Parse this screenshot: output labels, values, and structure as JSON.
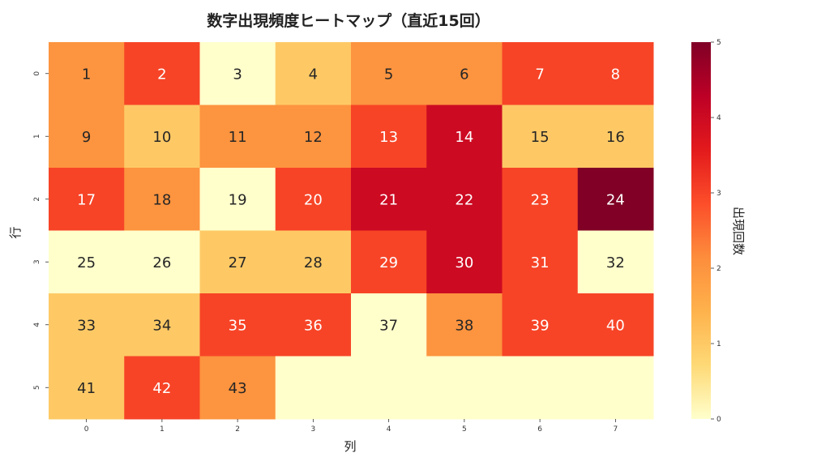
{
  "chart_data": {
    "type": "heatmap",
    "title": "数字出現頻度ヒートマップ（直近15回）",
    "xlabel": "列",
    "ylabel": "行",
    "x_ticks": [
      "0",
      "1",
      "2",
      "3",
      "4",
      "5",
      "6",
      "7"
    ],
    "y_ticks": [
      "0",
      "1",
      "2",
      "3",
      "4",
      "5"
    ],
    "colorbar": {
      "label": "出現回数",
      "range": [
        0,
        5
      ],
      "ticks": [
        "0",
        "1",
        "2",
        "3",
        "4",
        "5"
      ],
      "colormap": "YlOrRd",
      "stops": [
        "#ffffcc",
        "#fed976",
        "#feb24c",
        "#fd8d3c",
        "#fc4e2a",
        "#e31a1c",
        "#bd0026",
        "#800026"
      ]
    },
    "cells": [
      [
        {
          "label": "1",
          "value": 2
        },
        {
          "label": "2",
          "value": 3
        },
        {
          "label": "3",
          "value": 0
        },
        {
          "label": "4",
          "value": 1
        },
        {
          "label": "5",
          "value": 2
        },
        {
          "label": "6",
          "value": 2
        },
        {
          "label": "7",
          "value": 3
        },
        {
          "label": "8",
          "value": 3
        }
      ],
      [
        {
          "label": "9",
          "value": 2
        },
        {
          "label": "10",
          "value": 1
        },
        {
          "label": "11",
          "value": 2
        },
        {
          "label": "12",
          "value": 2
        },
        {
          "label": "13",
          "value": 3
        },
        {
          "label": "14",
          "value": 4
        },
        {
          "label": "15",
          "value": 1
        },
        {
          "label": "16",
          "value": 1
        }
      ],
      [
        {
          "label": "17",
          "value": 3
        },
        {
          "label": "18",
          "value": 2
        },
        {
          "label": "19",
          "value": 0
        },
        {
          "label": "20",
          "value": 3
        },
        {
          "label": "21",
          "value": 4
        },
        {
          "label": "22",
          "value": 4
        },
        {
          "label": "23",
          "value": 3
        },
        {
          "label": "24",
          "value": 5
        }
      ],
      [
        {
          "label": "25",
          "value": 0
        },
        {
          "label": "26",
          "value": 0
        },
        {
          "label": "27",
          "value": 1
        },
        {
          "label": "28",
          "value": 1
        },
        {
          "label": "29",
          "value": 3
        },
        {
          "label": "30",
          "value": 4
        },
        {
          "label": "31",
          "value": 3
        },
        {
          "label": "32",
          "value": 0
        }
      ],
      [
        {
          "label": "33",
          "value": 1
        },
        {
          "label": "34",
          "value": 1
        },
        {
          "label": "35",
          "value": 3
        },
        {
          "label": "36",
          "value": 3
        },
        {
          "label": "37",
          "value": 0
        },
        {
          "label": "38",
          "value": 2
        },
        {
          "label": "39",
          "value": 3
        },
        {
          "label": "40",
          "value": 3
        }
      ],
      [
        {
          "label": "41",
          "value": 1
        },
        {
          "label": "42",
          "value": 3
        },
        {
          "label": "43",
          "value": 2
        },
        {
          "label": "",
          "value": 0
        },
        {
          "label": "",
          "value": 0
        },
        {
          "label": "",
          "value": 0
        },
        {
          "label": "",
          "value": 0
        },
        {
          "label": "",
          "value": 0
        }
      ]
    ]
  }
}
